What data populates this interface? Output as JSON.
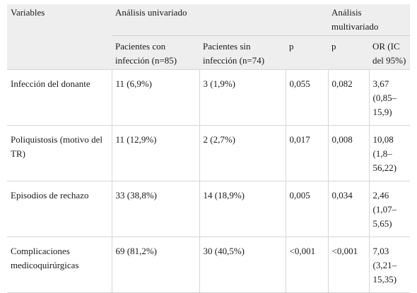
{
  "header": {
    "variables": "Variables",
    "univariate": "Análisis univariado",
    "multivariate": "Análisis multivariado",
    "with_infection": "Pacientes con infección (n=85)",
    "without_infection": "Pacientes sin infección (n=74)",
    "p_uni": "p",
    "p_multi": "p",
    "or": "OR (IC del 95%)"
  },
  "rows": [
    {
      "variable": "Infección del donante",
      "with": "11 (6,9%)",
      "without": "3 (1,9%)",
      "p_uni": "0,055",
      "p_multi": "0,082",
      "or": "3,67 (0,85–15,9)"
    },
    {
      "variable": "Poliquistosis (motivo del TR)",
      "with": "11 (12,9%)",
      "without": "2 (2,7%)",
      "p_uni": "0,017",
      "p_multi": "0,008",
      "or": "10,08 (1,8–56,22)"
    },
    {
      "variable": "Episodios de rechazo",
      "with": "33 (38,8%)",
      "without": "14 (18,9%)",
      "p_uni": "0,005",
      "p_multi": "0,034",
      "or": "2,46 (1,07–5,65)"
    },
    {
      "variable": "Complicaciones medicoquirúrgicas",
      "with": "69 (81,2%)",
      "without": "30 (40,5%)",
      "p_uni": "<0,001",
      "p_multi": "<0,001",
      "or": "7,03 (3,21–15,35)"
    }
  ]
}
